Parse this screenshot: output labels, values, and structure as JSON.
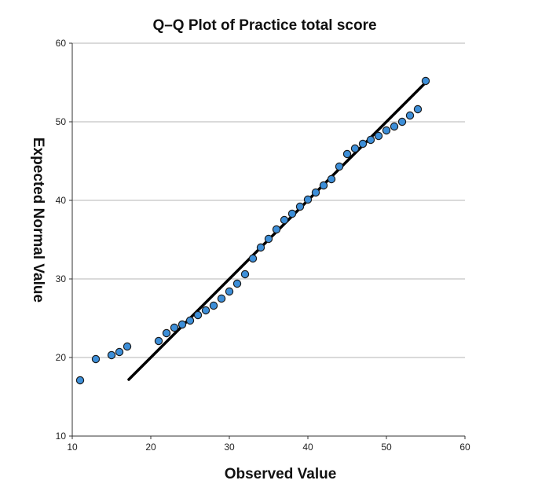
{
  "chart_data": {
    "type": "scatter",
    "title": "Q–Q Plot of Practice total score",
    "xlabel": "Observed Value",
    "ylabel": "Expected Normal Value",
    "xlim": [
      10,
      60
    ],
    "ylim": [
      10,
      60
    ],
    "x_ticks": [
      "10",
      "20",
      "30",
      "40",
      "50",
      "60"
    ],
    "y_ticks": [
      "10",
      "20",
      "30",
      "40",
      "50",
      "60"
    ],
    "grid": "horizontal",
    "points": [
      {
        "x": 11,
        "y": 17.1
      },
      {
        "x": 13,
        "y": 19.8
      },
      {
        "x": 15,
        "y": 20.3
      },
      {
        "x": 16,
        "y": 20.7
      },
      {
        "x": 17,
        "y": 21.4
      },
      {
        "x": 21,
        "y": 22.1
      },
      {
        "x": 22,
        "y": 23.1
      },
      {
        "x": 23,
        "y": 23.8
      },
      {
        "x": 24,
        "y": 24.2
      },
      {
        "x": 25,
        "y": 24.7
      },
      {
        "x": 26,
        "y": 25.4
      },
      {
        "x": 27,
        "y": 26.0
      },
      {
        "x": 28,
        "y": 26.6
      },
      {
        "x": 29,
        "y": 27.5
      },
      {
        "x": 30,
        "y": 28.4
      },
      {
        "x": 31,
        "y": 29.4
      },
      {
        "x": 32,
        "y": 30.6
      },
      {
        "x": 33,
        "y": 32.6
      },
      {
        "x": 34,
        "y": 34.0
      },
      {
        "x": 35,
        "y": 35.1
      },
      {
        "x": 36,
        "y": 36.3
      },
      {
        "x": 37,
        "y": 37.5
      },
      {
        "x": 38,
        "y": 38.3
      },
      {
        "x": 39,
        "y": 39.2
      },
      {
        "x": 40,
        "y": 40.1
      },
      {
        "x": 41,
        "y": 41.0
      },
      {
        "x": 42,
        "y": 41.9
      },
      {
        "x": 43,
        "y": 42.7
      },
      {
        "x": 44,
        "y": 44.3
      },
      {
        "x": 45,
        "y": 45.9
      },
      {
        "x": 46,
        "y": 46.6
      },
      {
        "x": 47,
        "y": 47.2
      },
      {
        "x": 48,
        "y": 47.7
      },
      {
        "x": 49,
        "y": 48.2
      },
      {
        "x": 50,
        "y": 48.9
      },
      {
        "x": 51,
        "y": 49.4
      },
      {
        "x": 52,
        "y": 50.0
      },
      {
        "x": 53,
        "y": 50.8
      },
      {
        "x": 54,
        "y": 51.6
      },
      {
        "x": 55,
        "y": 55.2
      }
    ],
    "reference_line": {
      "x": [
        17.2,
        55.2
      ],
      "y": [
        17.2,
        55.2
      ]
    },
    "colors": {
      "point_fill": "#3d8fd9",
      "point_stroke": "#1a1a1a",
      "line": "#000000",
      "grid": "#b5b5b5",
      "axis": "#333333"
    }
  }
}
